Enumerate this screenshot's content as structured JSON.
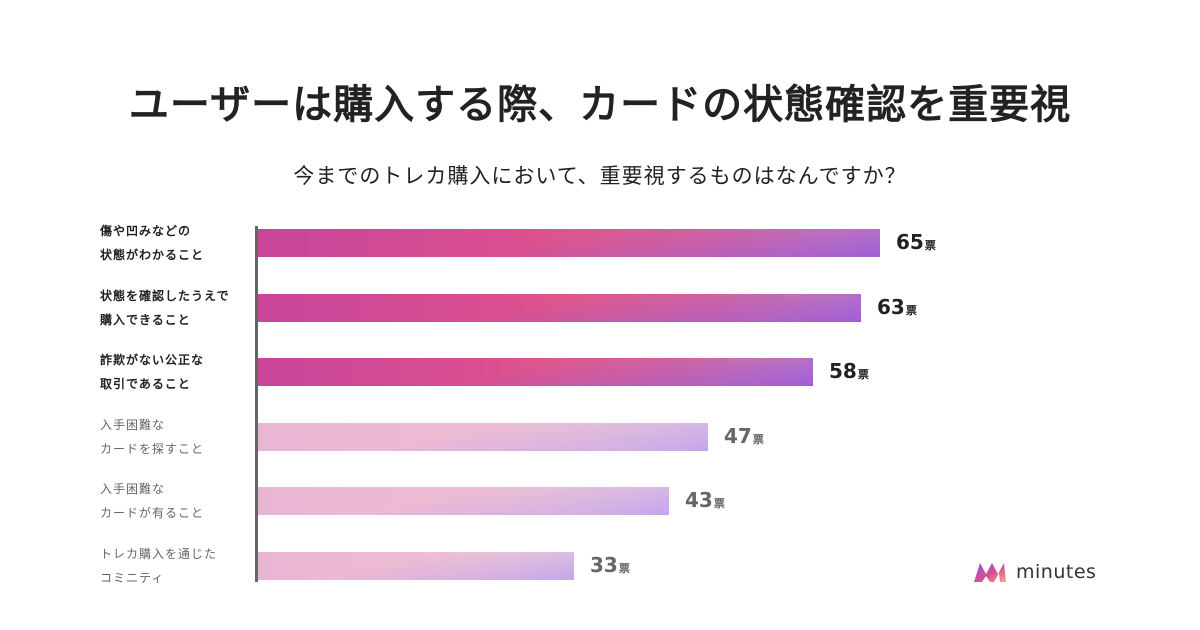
{
  "title": "ユーザーは購入する際、カードの状態確認を重要視",
  "colors": {
    "highlight_start": "#c8469b",
    "highlight_end": "#f2a690",
    "highlight_purple": "#8f50e6",
    "muted_start": "#e9b5d3",
    "muted_end": "#f9ddd2",
    "axis": "#666666"
  },
  "chart_data": {
    "type": "bar",
    "orientation": "horizontal",
    "title": "今までのトレカ購入において、重要視するものはなんですか？",
    "unit": "票",
    "xlim": [
      0,
      65
    ],
    "highlighted_count": 3,
    "categories": [
      [
        "傷や凹みなどの",
        "状態がわかること"
      ],
      [
        "状態を確認したうえで",
        "購入できること"
      ],
      [
        "詐欺がない公正な",
        "取引であること"
      ],
      [
        "入手困難な",
        "カードを探すこと"
      ],
      [
        "入手困難な",
        "カードが有ること"
      ],
      [
        "トレカ購入を通じた",
        "コミニティ"
      ]
    ],
    "values": [
      65,
      63,
      58,
      47,
      43,
      33
    ]
  },
  "logo": {
    "icon": "minutes-logo-icon",
    "text": "minutes"
  }
}
